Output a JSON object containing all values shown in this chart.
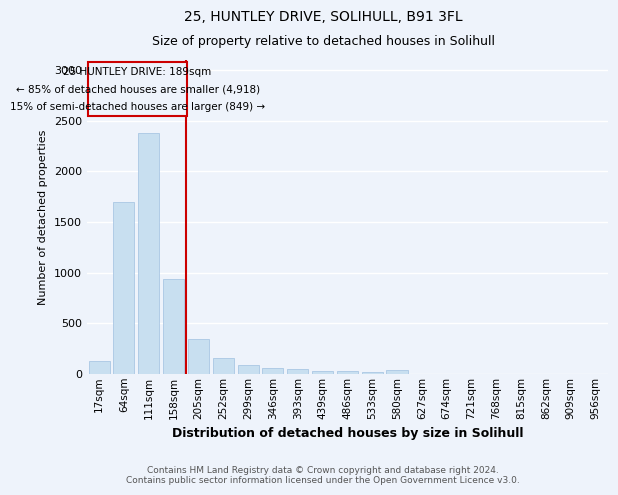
{
  "title_line1": "25, HUNTLEY DRIVE, SOLIHULL, B91 3FL",
  "title_line2": "Size of property relative to detached houses in Solihull",
  "xlabel": "Distribution of detached houses by size in Solihull",
  "ylabel": "Number of detached properties",
  "footnote_line1": "Contains HM Land Registry data © Crown copyright and database right 2024.",
  "footnote_line2": "Contains public sector information licensed under the Open Government Licence v3.0.",
  "bar_labels": [
    "17sqm",
    "64sqm",
    "111sqm",
    "158sqm",
    "205sqm",
    "252sqm",
    "299sqm",
    "346sqm",
    "393sqm",
    "439sqm",
    "486sqm",
    "533sqm",
    "580sqm",
    "627sqm",
    "674sqm",
    "721sqm",
    "768sqm",
    "815sqm",
    "862sqm",
    "909sqm",
    "956sqm"
  ],
  "bar_values": [
    130,
    1700,
    2380,
    940,
    340,
    155,
    90,
    55,
    45,
    30,
    25,
    20,
    40,
    0,
    0,
    0,
    0,
    0,
    0,
    0,
    0
  ],
  "bar_color": "#c8dff0",
  "bar_edgecolor": "#a0c0e0",
  "ylim": [
    0,
    3100
  ],
  "yticks": [
    0,
    500,
    1000,
    1500,
    2000,
    2500,
    3000
  ],
  "vline_color": "#cc0000",
  "annotation_text_line1": "25 HUNTLEY DRIVE: 189sqm",
  "annotation_text_line2": "← 85% of detached houses are smaller (4,918)",
  "annotation_text_line3": "15% of semi-detached houses are larger (849) →",
  "annotation_box_color": "#cc0000",
  "background_color": "#eef3fb",
  "grid_color": "#ffffff"
}
